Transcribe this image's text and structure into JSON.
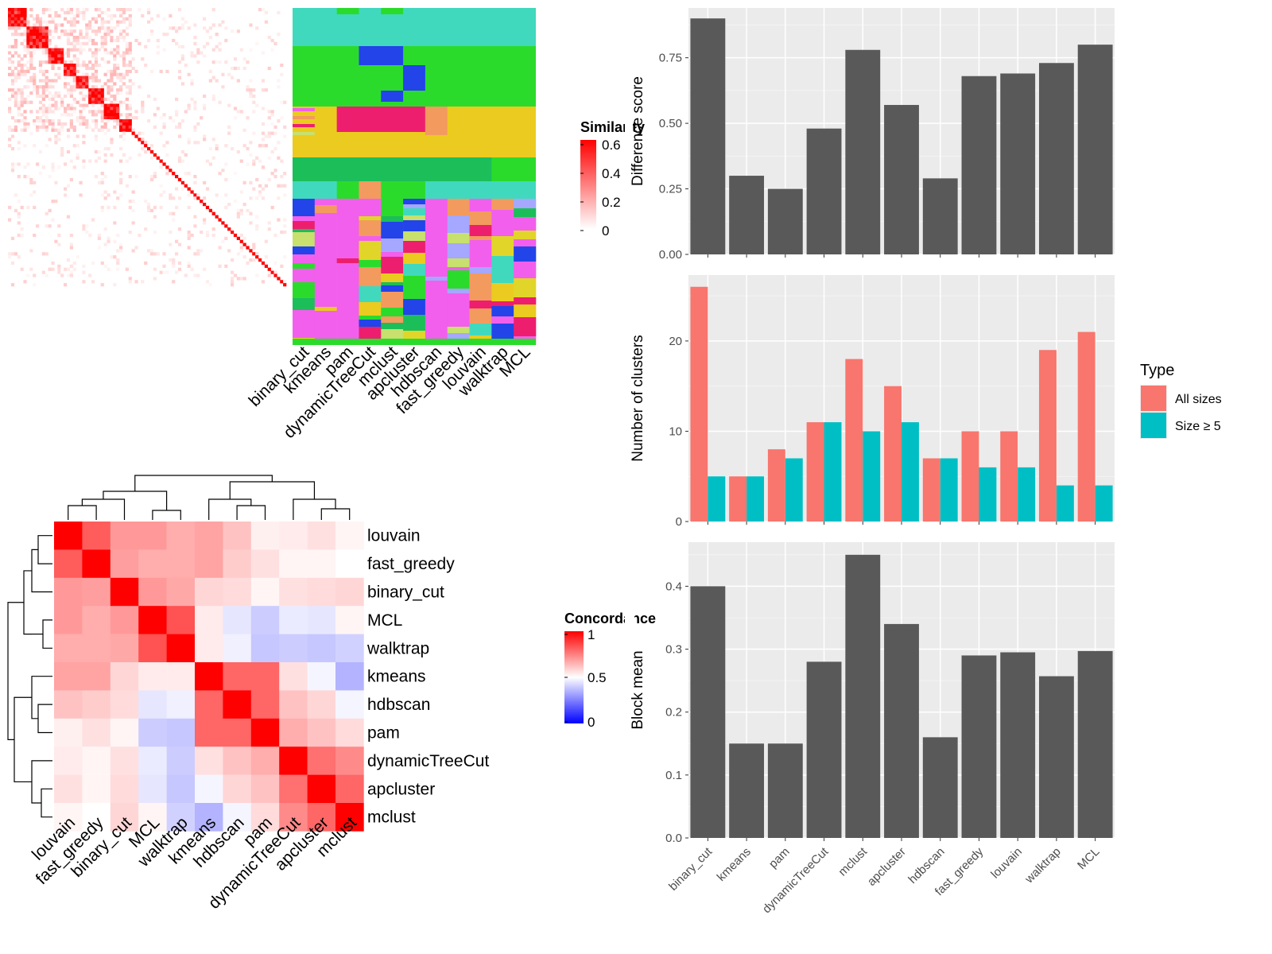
{
  "chart_data": [
    {
      "type": "heatmap",
      "legend_title": "Similarity",
      "legend_ticks": [
        "0.6",
        "0.4",
        "0.2",
        "0"
      ],
      "n": 90
    },
    {
      "type": "heatmap",
      "columns": [
        "binary_cut",
        "kmeans",
        "pam",
        "dynamicTreeCut",
        "mclust",
        "apcluster",
        "hdbscan",
        "fast_greedy",
        "louvain",
        "walktrap",
        "MCL"
      ],
      "palette": [
        "#40D9BE",
        "#2BDB2B",
        "#2244E8",
        "#EE1E6E",
        "#EBCB1F",
        "#1CBE5A",
        "#F25FEC",
        "#F39A5F",
        "#C7E06E",
        "#E2D52A",
        "#A6A7FF"
      ]
    },
    {
      "type": "heatmap",
      "legend_title": "Concordance",
      "legend_ticks": [
        "1",
        "0.5",
        "0"
      ],
      "rows": [
        "louvain",
        "fast_greedy",
        "binary_cut",
        "MCL",
        "walktrap",
        "kmeans",
        "hdbscan",
        "pam",
        "dynamicTreeCut",
        "apcluster",
        "mclust"
      ],
      "columns": [
        "louvain",
        "fast_greedy",
        "binary_cut",
        "MCL",
        "walktrap",
        "kmeans",
        "hdbscan",
        "pam",
        "dynamicTreeCut",
        "apcluster",
        "mclust"
      ],
      "values": [
        [
          1.0,
          0.82,
          0.7,
          0.7,
          0.66,
          0.68,
          0.62,
          0.53,
          0.54,
          0.56,
          0.52
        ],
        [
          0.82,
          1.0,
          0.69,
          0.66,
          0.66,
          0.68,
          0.6,
          0.56,
          0.52,
          0.52,
          0.5
        ],
        [
          0.7,
          0.69,
          1.0,
          0.7,
          0.67,
          0.58,
          0.57,
          0.52,
          0.56,
          0.57,
          0.58
        ],
        [
          0.7,
          0.66,
          0.7,
          1.0,
          0.84,
          0.54,
          0.45,
          0.4,
          0.46,
          0.45,
          0.52
        ],
        [
          0.66,
          0.66,
          0.67,
          0.84,
          1.0,
          0.54,
          0.47,
          0.39,
          0.4,
          0.39,
          0.41
        ],
        [
          0.68,
          0.68,
          0.58,
          0.54,
          0.54,
          1.0,
          0.8,
          0.8,
          0.56,
          0.48,
          0.35
        ],
        [
          0.62,
          0.6,
          0.57,
          0.45,
          0.47,
          0.8,
          1.0,
          0.8,
          0.62,
          0.58,
          0.48
        ],
        [
          0.53,
          0.56,
          0.52,
          0.4,
          0.39,
          0.8,
          0.8,
          1.0,
          0.66,
          0.62,
          0.57
        ],
        [
          0.54,
          0.52,
          0.56,
          0.46,
          0.4,
          0.56,
          0.62,
          0.66,
          1.0,
          0.78,
          0.73
        ],
        [
          0.56,
          0.52,
          0.57,
          0.45,
          0.39,
          0.48,
          0.58,
          0.62,
          0.78,
          1.0,
          0.8
        ],
        [
          0.52,
          0.5,
          0.58,
          0.52,
          0.41,
          0.35,
          0.48,
          0.57,
          0.73,
          0.8,
          1.0
        ]
      ]
    },
    {
      "type": "bar",
      "ylabel": "Difference score",
      "categories": [
        "binary_cut",
        "kmeans",
        "pam",
        "dynamicTreeCut",
        "mclust",
        "apcluster",
        "hdbscan",
        "fast_greedy",
        "louvain",
        "walktrap",
        "MCL"
      ],
      "values": [
        0.9,
        0.3,
        0.25,
        0.48,
        0.78,
        0.57,
        0.29,
        0.68,
        0.69,
        0.73,
        0.8
      ],
      "ylim": [
        0,
        0.94
      ],
      "yticks": [
        "0.00",
        "0.25",
        "0.50",
        "0.75"
      ],
      "ytick_values": [
        0,
        0.25,
        0.5,
        0.75
      ],
      "grid": true
    },
    {
      "type": "bar",
      "ylabel": "Number of clusters",
      "categories": [
        "binary_cut",
        "kmeans",
        "pam",
        "dynamicTreeCut",
        "mclust",
        "apcluster",
        "hdbscan",
        "fast_greedy",
        "louvain",
        "walktrap",
        "MCL"
      ],
      "series": [
        {
          "name": "All sizes",
          "color": "#F8766D",
          "values": [
            26,
            5,
            8,
            11,
            18,
            15,
            7,
            10,
            10,
            19,
            21
          ]
        },
        {
          "name": "Size ≥ 5",
          "color": "#00BFC4",
          "values": [
            5,
            5,
            7,
            11,
            10,
            11,
            7,
            6,
            6,
            4,
            4
          ]
        }
      ],
      "ylim": [
        0,
        27.3
      ],
      "yticks": [
        "0",
        "10",
        "20"
      ],
      "ytick_values": [
        0,
        10,
        20
      ],
      "legend_title": "Type",
      "legend_position": "right",
      "grid": true
    },
    {
      "type": "bar",
      "ylabel": "Block mean",
      "categories": [
        "binary_cut",
        "kmeans",
        "pam",
        "dynamicTreeCut",
        "mclust",
        "apcluster",
        "hdbscan",
        "fast_greedy",
        "louvain",
        "walktrap",
        "MCL"
      ],
      "values": [
        0.4,
        0.15,
        0.15,
        0.28,
        0.45,
        0.34,
        0.16,
        0.29,
        0.295,
        0.257,
        0.297
      ],
      "ylim": [
        0,
        0.47
      ],
      "yticks": [
        "0.0",
        "0.1",
        "0.2",
        "0.3",
        "0.4"
      ],
      "ytick_values": [
        0,
        0.1,
        0.2,
        0.3,
        0.4
      ],
      "grid": true
    }
  ]
}
